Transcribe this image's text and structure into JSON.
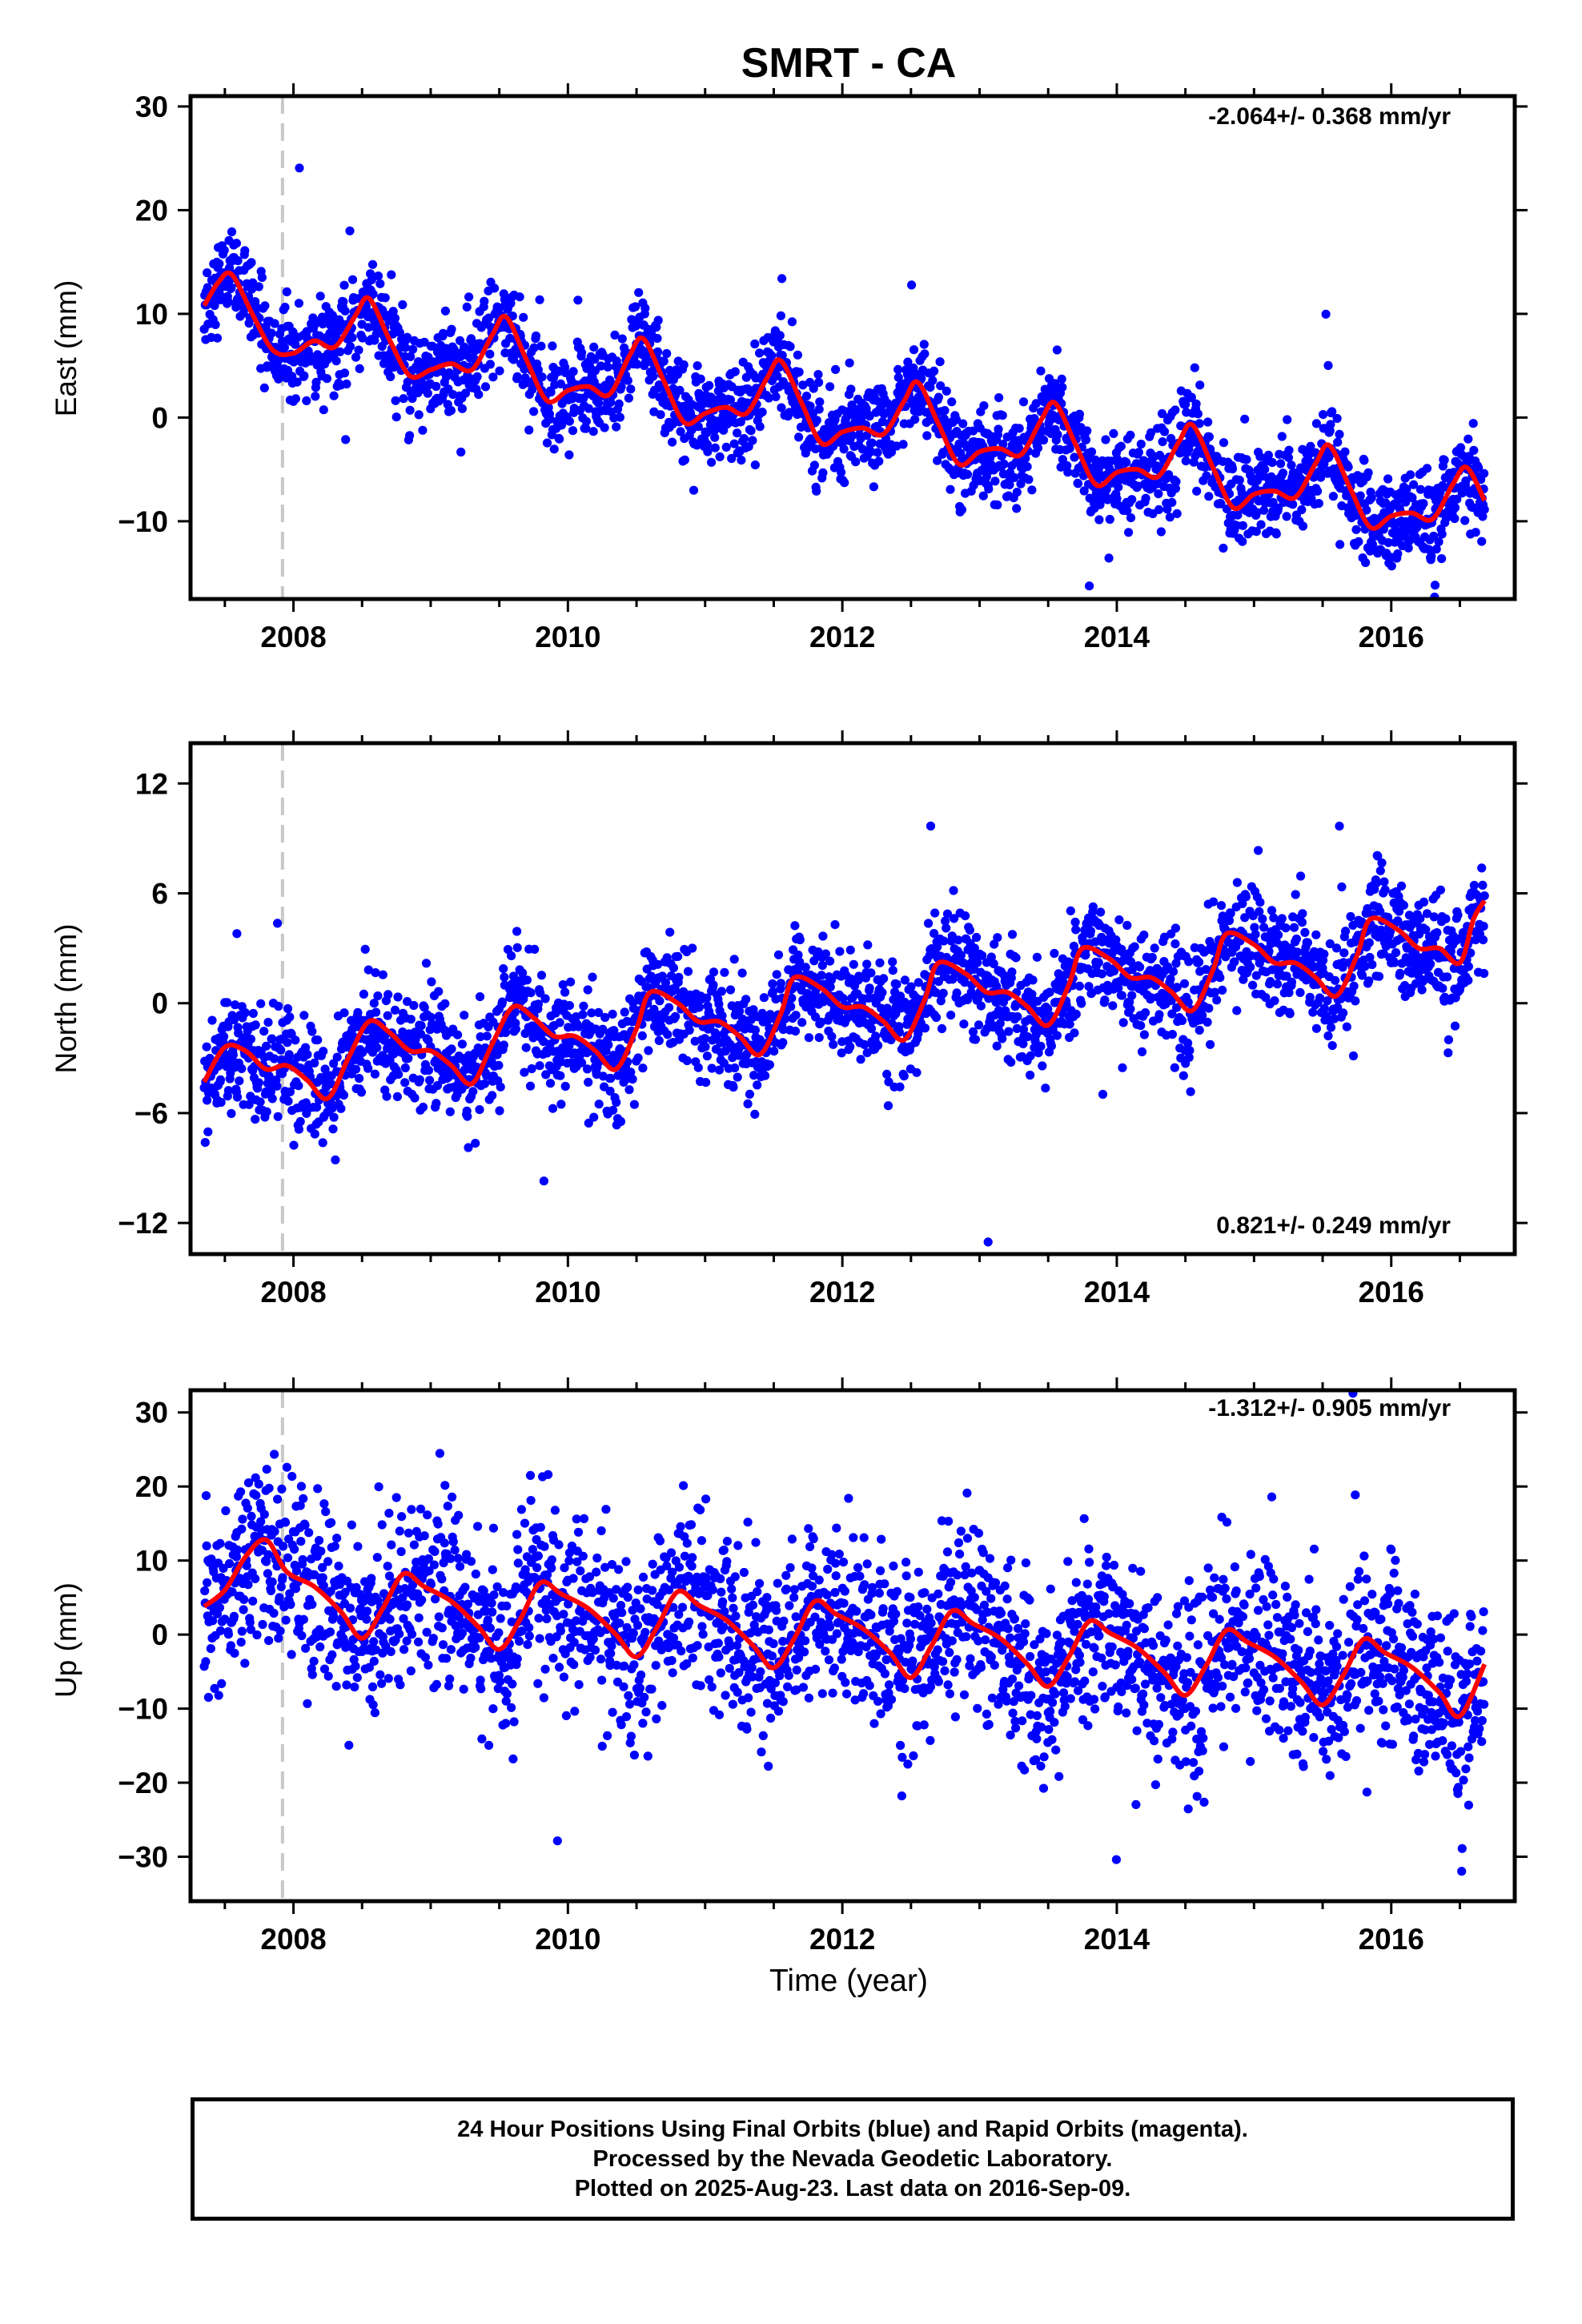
{
  "title": "SMRT - CA",
  "xlabel": "Time (year)",
  "footer": {
    "line1": "24 Hour Positions Using Final Orbits (blue) and Rapid Orbits (magenta).",
    "line2": "Processed by the Nevada Geodetic Laboratory.",
    "line3": "Plotted on 2025-Aug-23. Last data on 2016-Sep-09."
  },
  "colors": {
    "points": "#0000ff",
    "fit": "#ff0000",
    "event_line": "#c8c8c8",
    "frame": "#000000"
  },
  "chart_data": [
    {
      "type": "scatter",
      "ylabel": "East (mm)",
      "rate_label": "-2.064+/- 0.368 mm/yr",
      "xlim": [
        2007.25,
        2016.9
      ],
      "ylim": [
        -17.5,
        31
      ],
      "xticks": [
        2008,
        2010,
        2012,
        2014,
        2016
      ],
      "yticks": [
        -10,
        0,
        10,
        20,
        30
      ],
      "rate": -2.064,
      "offset_at_2012": -0.5,
      "annual_amplitude": 4.5,
      "noise": 2.2,
      "event_line_x": 2007.92,
      "series": [
        {
          "values": [
            [
              2007.35,
              10.8
            ],
            [
              2007.45,
              13.0
            ],
            [
              2007.55,
              13.8
            ],
            [
              2007.7,
              10.0
            ],
            [
              2007.85,
              6.5
            ],
            [
              2008.0,
              6.2
            ],
            [
              2008.15,
              7.4
            ],
            [
              2008.3,
              6.8
            ],
            [
              2008.45,
              9.8
            ],
            [
              2008.55,
              11.5
            ],
            [
              2008.7,
              7.5
            ],
            [
              2008.85,
              4.0
            ],
            [
              2009.0,
              4.6
            ],
            [
              2009.15,
              5.2
            ],
            [
              2009.3,
              4.6
            ],
            [
              2009.45,
              8.0
            ],
            [
              2009.55,
              9.7
            ],
            [
              2009.7,
              5.5
            ],
            [
              2009.85,
              1.6
            ],
            [
              2010.0,
              2.6
            ],
            [
              2010.15,
              3.0
            ],
            [
              2010.3,
              2.2
            ],
            [
              2010.45,
              6.0
            ],
            [
              2010.55,
              7.6
            ],
            [
              2010.7,
              3.5
            ],
            [
              2010.85,
              -0.5
            ],
            [
              2011.0,
              0.4
            ],
            [
              2011.15,
              1.0
            ],
            [
              2011.3,
              0.4
            ],
            [
              2011.45,
              3.8
            ],
            [
              2011.55,
              5.5
            ],
            [
              2011.7,
              1.5
            ],
            [
              2011.85,
              -2.5
            ],
            [
              2012.0,
              -1.4
            ],
            [
              2012.15,
              -1.0
            ],
            [
              2012.3,
              -1.6
            ],
            [
              2012.45,
              1.6
            ],
            [
              2012.55,
              3.4
            ],
            [
              2012.7,
              -0.6
            ],
            [
              2012.85,
              -4.5
            ],
            [
              2013.0,
              -3.3
            ],
            [
              2013.15,
              -3.0
            ],
            [
              2013.3,
              -3.6
            ],
            [
              2013.45,
              -0.2
            ],
            [
              2013.55,
              1.4
            ],
            [
              2013.7,
              -2.6
            ],
            [
              2013.85,
              -6.5
            ],
            [
              2014.0,
              -5.3
            ],
            [
              2014.15,
              -5.0
            ],
            [
              2014.3,
              -5.7
            ],
            [
              2014.45,
              -2.4
            ],
            [
              2014.55,
              -0.7
            ],
            [
              2014.7,
              -4.8
            ],
            [
              2014.85,
              -8.7
            ],
            [
              2015.0,
              -7.4
            ],
            [
              2015.15,
              -7.1
            ],
            [
              2015.3,
              -7.7
            ],
            [
              2015.45,
              -4.4
            ],
            [
              2015.55,
              -2.7
            ],
            [
              2015.7,
              -6.8
            ],
            [
              2015.85,
              -10.6
            ],
            [
              2016.0,
              -9.5
            ],
            [
              2016.15,
              -9.2
            ],
            [
              2016.3,
              -9.8
            ],
            [
              2016.45,
              -6.4
            ],
            [
              2016.55,
              -4.8
            ],
            [
              2016.68,
              -8.0
            ]
          ]
        }
      ]
    },
    {
      "type": "scatter",
      "ylabel": "North (mm)",
      "rate_label": "0.821+/- 0.249 mm/yr",
      "xlim": [
        2007.25,
        2016.9
      ],
      "ylim": [
        -13.7,
        14.2
      ],
      "xticks": [
        2008,
        2010,
        2012,
        2014,
        2016
      ],
      "yticks": [
        -12,
        -6,
        0,
        6,
        12
      ],
      "rate": 0.821,
      "offset_at_2012": 0.0,
      "annual_amplitude": 1.6,
      "noise": 1.5,
      "event_line_x": 2007.92,
      "series": [
        {
          "values": [
            [
              2007.35,
              -4.3
            ],
            [
              2007.5,
              -2.4
            ],
            [
              2007.65,
              -2.6
            ],
            [
              2007.8,
              -3.6
            ],
            [
              2007.95,
              -3.4
            ],
            [
              2008.1,
              -4.2
            ],
            [
              2008.25,
              -5.2
            ],
            [
              2008.4,
              -3.0
            ],
            [
              2008.55,
              -1.0
            ],
            [
              2008.7,
              -1.6
            ],
            [
              2008.85,
              -2.6
            ],
            [
              2009.0,
              -2.6
            ],
            [
              2009.15,
              -3.4
            ],
            [
              2009.3,
              -4.4
            ],
            [
              2009.45,
              -2.2
            ],
            [
              2009.6,
              -0.2
            ],
            [
              2009.75,
              -0.8
            ],
            [
              2009.9,
              -1.8
            ],
            [
              2010.05,
              -1.8
            ],
            [
              2010.2,
              -2.6
            ],
            [
              2010.35,
              -3.6
            ],
            [
              2010.5,
              -1.4
            ],
            [
              2010.6,
              0.6
            ],
            [
              2010.8,
              0.0
            ],
            [
              2010.95,
              -1.0
            ],
            [
              2011.1,
              -1.0
            ],
            [
              2011.25,
              -1.8
            ],
            [
              2011.4,
              -2.8
            ],
            [
              2011.55,
              -0.6
            ],
            [
              2011.65,
              1.4
            ],
            [
              2011.85,
              0.8
            ],
            [
              2012.0,
              -0.2
            ],
            [
              2012.15,
              -0.2
            ],
            [
              2012.3,
              -1.0
            ],
            [
              2012.45,
              -2.0
            ],
            [
              2012.6,
              0.2
            ],
            [
              2012.7,
              2.2
            ],
            [
              2012.9,
              1.6
            ],
            [
              2013.05,
              0.6
            ],
            [
              2013.2,
              0.6
            ],
            [
              2013.35,
              -0.2
            ],
            [
              2013.5,
              -1.2
            ],
            [
              2013.65,
              1.0
            ],
            [
              2013.75,
              3.0
            ],
            [
              2013.95,
              2.4
            ],
            [
              2014.1,
              1.4
            ],
            [
              2014.25,
              1.4
            ],
            [
              2014.4,
              0.6
            ],
            [
              2014.55,
              -0.4
            ],
            [
              2014.7,
              1.8
            ],
            [
              2014.8,
              3.8
            ],
            [
              2015.0,
              3.2
            ],
            [
              2015.15,
              2.2
            ],
            [
              2015.3,
              2.2
            ],
            [
              2015.45,
              1.4
            ],
            [
              2015.6,
              0.4
            ],
            [
              2015.75,
              2.6
            ],
            [
              2015.85,
              4.6
            ],
            [
              2016.05,
              4.0
            ],
            [
              2016.2,
              3.0
            ],
            [
              2016.35,
              3.0
            ],
            [
              2016.5,
              2.2
            ],
            [
              2016.6,
              4.6
            ],
            [
              2016.68,
              5.6
            ]
          ]
        }
      ]
    },
    {
      "type": "scatter",
      "ylabel": "Up (mm)",
      "rate_label": "-1.312+/- 0.905 mm/yr",
      "xlim": [
        2007.25,
        2016.9
      ],
      "ylim": [
        -36,
        33
      ],
      "xticks": [
        2008,
        2010,
        2012,
        2014,
        2016
      ],
      "yticks": [
        -30,
        -20,
        -10,
        0,
        10,
        20,
        30
      ],
      "rate": -1.312,
      "offset_at_2012": -0.5,
      "annual_amplitude": 4.5,
      "noise": 6.0,
      "event_line_x": 2007.92,
      "series": [
        {
          "values": [
            [
              2007.35,
              3.8
            ],
            [
              2007.5,
              6.0
            ],
            [
              2007.65,
              10.5
            ],
            [
              2007.8,
              12.8
            ],
            [
              2007.95,
              8.5
            ],
            [
              2008.15,
              6.5
            ],
            [
              2008.35,
              3.0
            ],
            [
              2008.5,
              -0.5
            ],
            [
              2008.65,
              3.5
            ],
            [
              2008.8,
              8.2
            ],
            [
              2008.95,
              6.5
            ],
            [
              2009.15,
              4.5
            ],
            [
              2009.35,
              1.0
            ],
            [
              2009.5,
              -2.0
            ],
            [
              2009.65,
              2.0
            ],
            [
              2009.8,
              7.0
            ],
            [
              2009.95,
              5.5
            ],
            [
              2010.15,
              3.5
            ],
            [
              2010.35,
              0.0
            ],
            [
              2010.5,
              -3.0
            ],
            [
              2010.65,
              1.0
            ],
            [
              2010.8,
              5.8
            ],
            [
              2010.95,
              4.0
            ],
            [
              2011.15,
              2.0
            ],
            [
              2011.35,
              -1.5
            ],
            [
              2011.5,
              -4.5
            ],
            [
              2011.65,
              -0.5
            ],
            [
              2011.8,
              4.5
            ],
            [
              2011.95,
              2.8
            ],
            [
              2012.15,
              0.8
            ],
            [
              2012.35,
              -2.5
            ],
            [
              2012.5,
              -5.8
            ],
            [
              2012.65,
              -1.5
            ],
            [
              2012.8,
              3.2
            ],
            [
              2012.95,
              1.5
            ],
            [
              2013.15,
              -0.5
            ],
            [
              2013.35,
              -4.0
            ],
            [
              2013.5,
              -7.0
            ],
            [
              2013.65,
              -3.0
            ],
            [
              2013.8,
              1.8
            ],
            [
              2013.95,
              0.2
            ],
            [
              2014.15,
              -1.8
            ],
            [
              2014.35,
              -5.2
            ],
            [
              2014.5,
              -8.2
            ],
            [
              2014.65,
              -4.2
            ],
            [
              2014.8,
              0.6
            ],
            [
              2014.95,
              -1.0
            ],
            [
              2015.15,
              -3.0
            ],
            [
              2015.35,
              -6.5
            ],
            [
              2015.5,
              -9.5
            ],
            [
              2015.65,
              -5.5
            ],
            [
              2015.8,
              -0.6
            ],
            [
              2015.95,
              -2.4
            ],
            [
              2016.15,
              -4.4
            ],
            [
              2016.35,
              -7.8
            ],
            [
              2016.5,
              -11.0
            ],
            [
              2016.68,
              -4.0
            ]
          ]
        }
      ]
    }
  ]
}
